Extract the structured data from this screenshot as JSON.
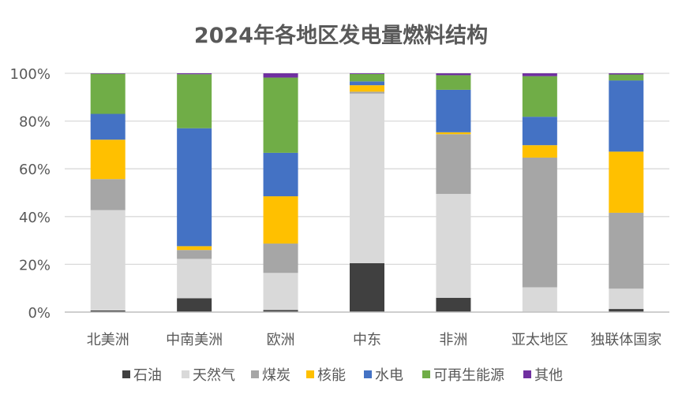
{
  "chart_data": {
    "type": "bar",
    "stacked": true,
    "percent": true,
    "title": "2024年各地区发电量燃料结构",
    "categories": [
      "北美洲",
      "中南美洲",
      "欧洲",
      "中东",
      "非洲",
      "亚太地区",
      "独联体国家"
    ],
    "ylim": [
      0,
      100
    ],
    "yticks": [
      "0%",
      "20%",
      "40%",
      "60%",
      "80%",
      "100%"
    ],
    "ytick_values": [
      0,
      20,
      40,
      60,
      80,
      100
    ],
    "grid": true,
    "legend_position": "bottom",
    "series": [
      {
        "name": "石油",
        "color": "#404040",
        "values": [
          0.7,
          5.8,
          0.9,
          20.5,
          6.0,
          0.2,
          1.3
        ]
      },
      {
        "name": "天然气",
        "color": "#d9d9d9",
        "values": [
          42.0,
          16.5,
          15.5,
          71.0,
          43.5,
          10.2,
          8.5
        ]
      },
      {
        "name": "煤炭",
        "color": "#a6a6a6",
        "values": [
          13.0,
          3.7,
          12.3,
          0.8,
          25.0,
          54.3,
          31.8
        ]
      },
      {
        "name": "核能",
        "color": "#ffc000",
        "values": [
          16.5,
          1.6,
          19.8,
          2.7,
          0.8,
          5.2,
          25.6
        ]
      },
      {
        "name": "水电",
        "color": "#4472c4",
        "values": [
          10.8,
          49.4,
          18.2,
          1.6,
          17.8,
          11.9,
          29.8
        ]
      },
      {
        "name": "可再生能源",
        "color": "#70ad47",
        "values": [
          16.8,
          22.6,
          31.5,
          3.1,
          6.1,
          17.0,
          2.5
        ]
      },
      {
        "name": "其他",
        "color": "#7030a0",
        "values": [
          0.2,
          0.4,
          1.8,
          0.3,
          0.8,
          1.2,
          0.5
        ]
      }
    ]
  }
}
